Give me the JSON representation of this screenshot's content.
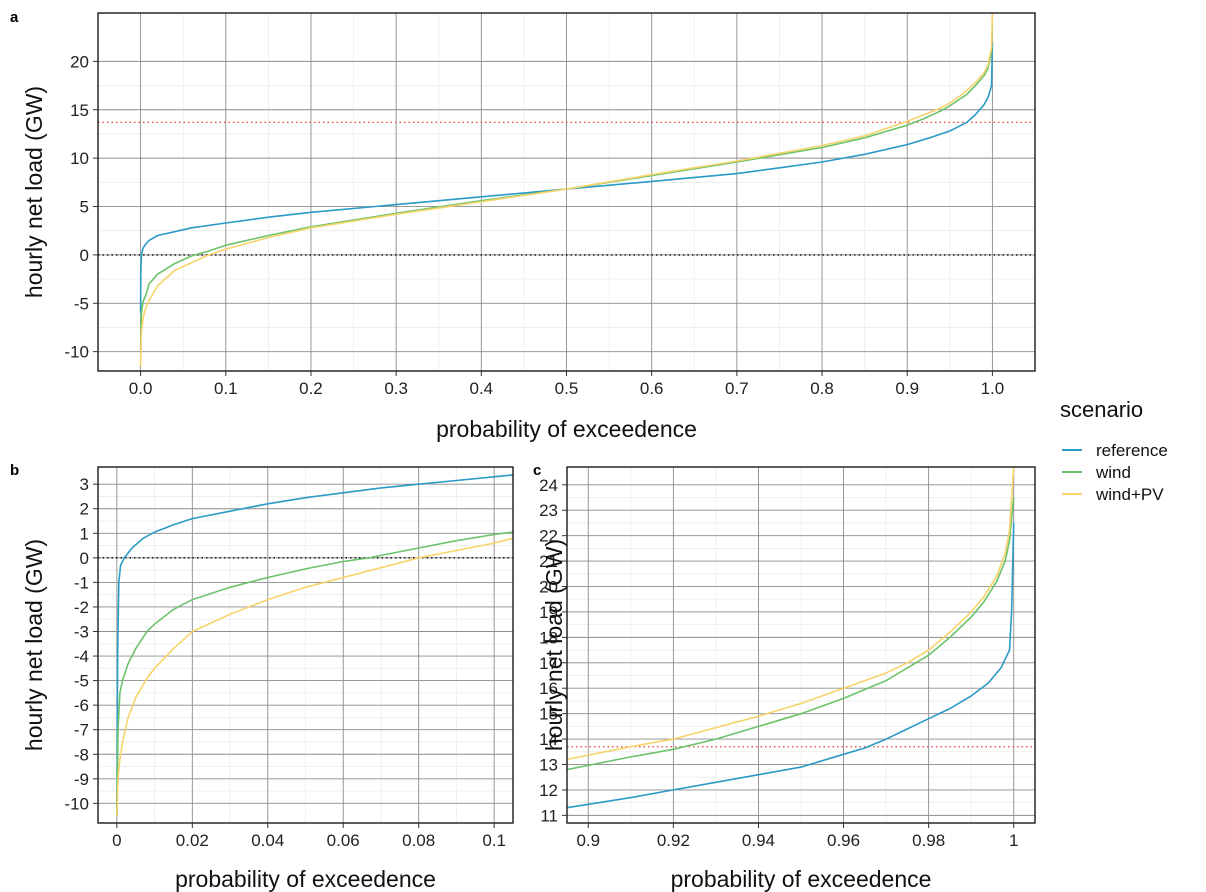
{
  "legend": {
    "title": "scenario",
    "entries": [
      {
        "label": "reference",
        "color": "#2b9ac6"
      },
      {
        "label": "wind",
        "color": "#6cc36a"
      },
      {
        "label": "wind+PV",
        "color": "#f7d36a"
      }
    ]
  },
  "chart_data": [
    {
      "panel": "a",
      "type": "line",
      "xlabel": "probability of exceedence",
      "ylabel": "hourly net load (GW)",
      "xlim": [
        -0.05,
        1.05
      ],
      "ylim": [
        -12,
        25
      ],
      "xticks": [
        0.0,
        0.1,
        0.2,
        0.3,
        0.4,
        0.5,
        0.6,
        0.7,
        0.8,
        0.9,
        1.0
      ],
      "xtick_labels": [
        "0.0",
        "0.1",
        "0.2",
        "0.3",
        "0.4",
        "0.5",
        "0.6",
        "0.7",
        "0.8",
        "0.9",
        "1.0"
      ],
      "yticks": [
        -10,
        -5,
        0,
        5,
        10,
        15,
        20
      ],
      "ytick_labels": [
        "-10",
        "-5",
        "0",
        "5",
        "10",
        "15",
        "20"
      ],
      "reference_lines": [
        {
          "y": 0,
          "color": "#000000",
          "style": "dotted"
        },
        {
          "y": 13.7,
          "color": "#e8504a",
          "style": "dotted"
        }
      ],
      "series": [
        {
          "name": "reference",
          "color": "#2b9ac6",
          "x": [
            0,
            0.0003,
            0.001,
            0.003,
            0.006,
            0.01,
            0.02,
            0.04,
            0.06,
            0.1,
            0.15,
            0.2,
            0.3,
            0.4,
            0.5,
            0.6,
            0.7,
            0.75,
            0.8,
            0.85,
            0.9,
            0.93,
            0.95,
            0.97,
            0.98,
            0.99,
            0.995,
            0.999,
            1.0
          ],
          "y": [
            -6,
            -1.5,
            0,
            0.7,
            1.1,
            1.5,
            2.0,
            2.4,
            2.8,
            3.3,
            3.9,
            4.4,
            5.2,
            6.0,
            6.8,
            7.6,
            8.4,
            9.0,
            9.6,
            10.4,
            11.4,
            12.2,
            12.8,
            13.7,
            14.5,
            15.5,
            16.3,
            17.5,
            22
          ]
        },
        {
          "name": "wind",
          "color": "#6cc36a",
          "x": [
            0,
            0.001,
            0.003,
            0.006,
            0.01,
            0.02,
            0.04,
            0.06,
            0.08,
            0.1,
            0.15,
            0.2,
            0.3,
            0.4,
            0.5,
            0.6,
            0.7,
            0.8,
            0.85,
            0.9,
            0.92,
            0.94,
            0.95,
            0.96,
            0.97,
            0.98,
            0.99,
            0.995,
            0.999,
            1.0
          ],
          "y": [
            -10,
            -6,
            -4.8,
            -4.2,
            -3.0,
            -2.0,
            -0.9,
            -0.1,
            0.4,
            1.0,
            2.0,
            2.9,
            4.3,
            5.6,
            6.8,
            8.2,
            9.6,
            11.1,
            12.1,
            13.4,
            14.1,
            14.9,
            15.4,
            16.0,
            16.6,
            17.5,
            18.5,
            19.3,
            21.0,
            24
          ]
        },
        {
          "name": "wind+PV",
          "color": "#f7d36a",
          "x": [
            0,
            0.001,
            0.003,
            0.006,
            0.01,
            0.02,
            0.04,
            0.06,
            0.08,
            0.1,
            0.15,
            0.2,
            0.3,
            0.4,
            0.5,
            0.6,
            0.7,
            0.8,
            0.85,
            0.9,
            0.92,
            0.94,
            0.95,
            0.96,
            0.97,
            0.98,
            0.99,
            0.995,
            0.999,
            1.0
          ],
          "y": [
            -11.5,
            -8.0,
            -6.5,
            -5.5,
            -4.7,
            -3.2,
            -1.6,
            -0.8,
            0.0,
            0.6,
            1.8,
            2.8,
            4.2,
            5.5,
            6.8,
            8.3,
            9.7,
            11.3,
            12.3,
            13.8,
            14.5,
            15.2,
            15.7,
            16.3,
            17.0,
            17.8,
            18.8,
            19.6,
            21.5,
            25
          ]
        }
      ]
    },
    {
      "panel": "b",
      "type": "line",
      "xlabel": "probability of exceedence",
      "ylabel": "hourly net load (GW)",
      "xlim": [
        -0.005,
        0.105
      ],
      "ylim": [
        -10.8,
        3.7
      ],
      "xticks": [
        0,
        0.02,
        0.04,
        0.06,
        0.08,
        0.1
      ],
      "xtick_labels": [
        "0",
        "0.02",
        "0.04",
        "0.06",
        "0.08",
        "0.1"
      ],
      "yticks": [
        -10,
        -9,
        -8,
        -7,
        -6,
        -5,
        -4,
        -3,
        -2,
        -1,
        0,
        1,
        2,
        3
      ],
      "ytick_labels": [
        "-10",
        "-9",
        "-8",
        "-7",
        "-6",
        "-5",
        "-4",
        "-3",
        "-2",
        "-1",
        "0",
        "1",
        "2",
        "3"
      ],
      "reference_lines": [
        {
          "y": 0,
          "color": "#000000",
          "style": "dotted"
        }
      ],
      "series": [
        {
          "name": "reference",
          "color": "#2b9ac6",
          "x": [
            0,
            0.0002,
            0.0005,
            0.001,
            0.002,
            0.004,
            0.007,
            0.01,
            0.015,
            0.02,
            0.03,
            0.04,
            0.05,
            0.06,
            0.07,
            0.08,
            0.09,
            0.1,
            0.105
          ],
          "y": [
            -10.5,
            -4,
            -1,
            -0.3,
            0,
            0.4,
            0.8,
            1.05,
            1.35,
            1.6,
            1.9,
            2.2,
            2.45,
            2.65,
            2.85,
            3.0,
            3.15,
            3.3,
            3.38
          ]
        },
        {
          "name": "wind",
          "color": "#6cc36a",
          "x": [
            0,
            0.0003,
            0.0008,
            0.0015,
            0.003,
            0.005,
            0.008,
            0.01,
            0.015,
            0.02,
            0.03,
            0.04,
            0.05,
            0.06,
            0.067,
            0.07,
            0.08,
            0.09,
            0.1,
            0.105
          ],
          "y": [
            -10.5,
            -7,
            -5.5,
            -5.0,
            -4.3,
            -3.7,
            -3.0,
            -2.7,
            -2.1,
            -1.7,
            -1.2,
            -0.8,
            -0.45,
            -0.15,
            0,
            0.1,
            0.4,
            0.7,
            0.95,
            1.05
          ]
        },
        {
          "name": "wind+PV",
          "color": "#f7d36a",
          "x": [
            0,
            0.0003,
            0.0008,
            0.0015,
            0.003,
            0.005,
            0.008,
            0.01,
            0.015,
            0.02,
            0.03,
            0.04,
            0.05,
            0.06,
            0.07,
            0.08,
            0.09,
            0.1,
            0.105
          ],
          "y": [
            -10.5,
            -9,
            -8.2,
            -7.5,
            -6.5,
            -5.7,
            -4.9,
            -4.5,
            -3.7,
            -3.0,
            -2.3,
            -1.7,
            -1.2,
            -0.8,
            -0.4,
            0,
            0.3,
            0.6,
            0.8
          ]
        }
      ]
    },
    {
      "panel": "c",
      "type": "line",
      "xlabel": "probability of exceedence",
      "ylabel": "hourly net load (GW)",
      "xlim": [
        0.895,
        1.005
      ],
      "ylim": [
        10.7,
        24.7
      ],
      "xticks": [
        0.9,
        0.92,
        0.94,
        0.96,
        0.98,
        1.0
      ],
      "xtick_labels": [
        "0.9",
        "0.92",
        "0.94",
        "0.96",
        "0.98",
        "1"
      ],
      "yticks": [
        11,
        12,
        13,
        14,
        15,
        16,
        17,
        18,
        19,
        20,
        21,
        22,
        23,
        24
      ],
      "ytick_labels": [
        "11",
        "12",
        "13",
        "14",
        "15",
        "16",
        "17",
        "18",
        "19",
        "20",
        "21",
        "22",
        "23",
        "24"
      ],
      "reference_lines": [
        {
          "y": 13.7,
          "color": "#e8504a",
          "style": "dotted"
        }
      ],
      "series": [
        {
          "name": "reference",
          "color": "#2b9ac6",
          "x": [
            0.895,
            0.91,
            0.92,
            0.93,
            0.94,
            0.95,
            0.96,
            0.965,
            0.97,
            0.975,
            0.98,
            0.985,
            0.99,
            0.994,
            0.997,
            0.999,
            0.9995,
            1.0
          ],
          "y": [
            11.3,
            11.7,
            12.0,
            12.3,
            12.6,
            12.9,
            13.4,
            13.65,
            14.0,
            14.4,
            14.8,
            15.2,
            15.7,
            16.2,
            16.8,
            17.5,
            19.0,
            22.5
          ]
        },
        {
          "name": "wind",
          "color": "#6cc36a",
          "x": [
            0.895,
            0.91,
            0.92,
            0.93,
            0.94,
            0.95,
            0.96,
            0.97,
            0.975,
            0.98,
            0.985,
            0.99,
            0.993,
            0.996,
            0.998,
            0.999,
            1.0
          ],
          "y": [
            12.8,
            13.3,
            13.6,
            14.0,
            14.5,
            15.0,
            15.6,
            16.3,
            16.8,
            17.3,
            18.0,
            18.8,
            19.4,
            20.2,
            21.0,
            21.8,
            23.5
          ]
        },
        {
          "name": "wind+PV",
          "color": "#f7d36a",
          "x": [
            0.895,
            0.91,
            0.92,
            0.93,
            0.94,
            0.95,
            0.96,
            0.97,
            0.975,
            0.98,
            0.985,
            0.99,
            0.993,
            0.996,
            0.998,
            0.999,
            1.0
          ],
          "y": [
            13.2,
            13.7,
            14.0,
            14.45,
            14.9,
            15.4,
            16.0,
            16.6,
            17.0,
            17.5,
            18.2,
            19.0,
            19.6,
            20.4,
            21.3,
            22.2,
            24.7
          ]
        }
      ]
    }
  ]
}
